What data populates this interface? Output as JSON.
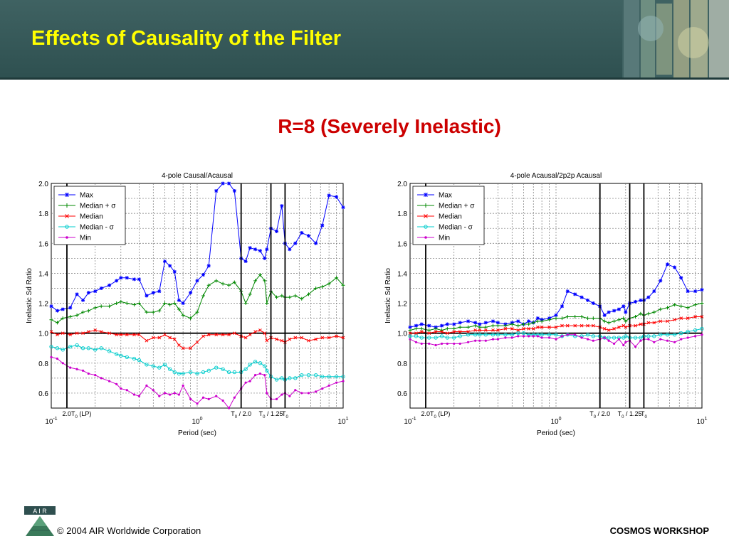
{
  "slide": {
    "title": "Effects of Causality of the Filter",
    "subtitle": "R=8 (Severely Inelastic)",
    "footer_copyright": "© 2004 AIR Worldwide Corporation",
    "footer_workshop": "COSMOS WORKSHOP",
    "logo_text": "A I R",
    "colors": {
      "title_bar": "#355757",
      "title_text": "#ffff00",
      "subtitle_text": "#cc0000",
      "max": "#0000ff",
      "median_plus_sigma": "#008800",
      "median": "#ff0000",
      "median_minus_sigma": "#00cccc",
      "min": "#cc00cc"
    }
  },
  "chart_data": [
    {
      "type": "line",
      "title": "4-pole Causal/Acausal",
      "xlabel": "Period (sec)",
      "ylabel": "Inelastic Sd Ratio",
      "xscale": "log",
      "xlim": [
        0.1,
        10
      ],
      "ylim": [
        0.5,
        2.0
      ],
      "yticks": [
        0.6,
        0.8,
        1.0,
        1.2,
        1.4,
        1.6,
        1.8,
        2.0
      ],
      "grid": true,
      "legend": "top-left",
      "reference_line": 1.0,
      "x_tick_labels": [
        {
          "x": 0.1,
          "label": "10",
          "sup": "-1"
        },
        {
          "x": 1,
          "label": "10",
          "sup": "0"
        },
        {
          "x": 10,
          "label": "10",
          "sup": "1"
        }
      ],
      "markers": [
        {
          "x": 0.128,
          "label": "2.0T",
          "sub": "0",
          "suffix": "(LP)"
        },
        {
          "x": 2.0,
          "label": "T",
          "sub": "0",
          "suffix": "/ 2.0"
        },
        {
          "x": 3.2,
          "label": "T",
          "sub": "0",
          "suffix": "/ 1.25"
        },
        {
          "x": 4.0,
          "label": "T",
          "sub": "0",
          "suffix": ""
        }
      ],
      "x": [
        0.1,
        0.11,
        0.12,
        0.135,
        0.15,
        0.165,
        0.18,
        0.2,
        0.22,
        0.25,
        0.28,
        0.3,
        0.33,
        0.37,
        0.4,
        0.45,
        0.5,
        0.55,
        0.6,
        0.65,
        0.7,
        0.75,
        0.8,
        0.9,
        1.0,
        1.1,
        1.2,
        1.35,
        1.5,
        1.65,
        1.8,
        2.0,
        2.15,
        2.3,
        2.5,
        2.7,
        2.9,
        3.0,
        3.2,
        3.5,
        3.8,
        4.0,
        4.3,
        4.7,
        5.2,
        5.8,
        6.5,
        7.2,
        8.0,
        9.0,
        10.0
      ],
      "series": [
        {
          "name": "Max",
          "marker": "star",
          "values": [
            1.18,
            1.15,
            1.16,
            1.17,
            1.26,
            1.22,
            1.27,
            1.28,
            1.3,
            1.32,
            1.35,
            1.37,
            1.37,
            1.36,
            1.36,
            1.25,
            1.27,
            1.28,
            1.48,
            1.45,
            1.41,
            1.22,
            1.2,
            1.27,
            1.35,
            1.39,
            1.45,
            1.95,
            2.0,
            2.0,
            1.95,
            1.5,
            1.48,
            1.57,
            1.56,
            1.55,
            1.5,
            1.56,
            1.7,
            1.68,
            1.85,
            1.6,
            1.56,
            1.6,
            1.67,
            1.65,
            1.6,
            1.72,
            1.92,
            1.91,
            1.84
          ]
        },
        {
          "name": "Median + σ",
          "marker": "plus",
          "values": [
            1.09,
            1.07,
            1.1,
            1.11,
            1.12,
            1.14,
            1.15,
            1.17,
            1.18,
            1.18,
            1.2,
            1.21,
            1.2,
            1.19,
            1.2,
            1.14,
            1.14,
            1.15,
            1.2,
            1.19,
            1.2,
            1.16,
            1.12,
            1.1,
            1.14,
            1.25,
            1.32,
            1.35,
            1.33,
            1.32,
            1.34,
            1.28,
            1.2,
            1.26,
            1.35,
            1.39,
            1.35,
            1.2,
            1.28,
            1.24,
            1.25,
            1.24,
            1.24,
            1.25,
            1.23,
            1.26,
            1.3,
            1.31,
            1.33,
            1.37,
            1.32
          ]
        },
        {
          "name": "Median",
          "marker": "x",
          "values": [
            1.01,
            0.99,
            1.0,
            0.99,
            1.0,
            1.0,
            1.01,
            1.02,
            1.01,
            1.0,
            0.99,
            0.99,
            0.99,
            0.99,
            0.99,
            0.95,
            0.97,
            0.97,
            0.99,
            0.97,
            0.96,
            0.92,
            0.9,
            0.9,
            0.94,
            0.98,
            0.99,
            0.99,
            0.99,
            0.99,
            1.0,
            0.98,
            0.97,
            0.99,
            1.01,
            1.02,
            1.0,
            0.95,
            0.97,
            0.96,
            0.95,
            0.94,
            0.96,
            0.97,
            0.97,
            0.95,
            0.96,
            0.97,
            0.97,
            0.98,
            0.97
          ]
        },
        {
          "name": "Median - σ",
          "marker": "circle",
          "values": [
            0.91,
            0.9,
            0.89,
            0.91,
            0.92,
            0.9,
            0.9,
            0.89,
            0.9,
            0.88,
            0.86,
            0.85,
            0.84,
            0.83,
            0.82,
            0.79,
            0.78,
            0.77,
            0.79,
            0.76,
            0.74,
            0.73,
            0.73,
            0.74,
            0.73,
            0.74,
            0.75,
            0.77,
            0.76,
            0.74,
            0.74,
            0.74,
            0.76,
            0.79,
            0.81,
            0.8,
            0.78,
            0.75,
            0.71,
            0.69,
            0.7,
            0.69,
            0.7,
            0.7,
            0.72,
            0.72,
            0.72,
            0.71,
            0.71,
            0.71,
            0.71
          ]
        },
        {
          "name": "Min",
          "marker": "dot",
          "values": [
            0.84,
            0.83,
            0.8,
            0.77,
            0.76,
            0.75,
            0.73,
            0.72,
            0.7,
            0.68,
            0.66,
            0.63,
            0.62,
            0.59,
            0.58,
            0.65,
            0.62,
            0.58,
            0.6,
            0.59,
            0.6,
            0.59,
            0.65,
            0.56,
            0.53,
            0.57,
            0.56,
            0.58,
            0.55,
            0.5,
            0.57,
            0.63,
            0.67,
            0.68,
            0.72,
            0.73,
            0.72,
            0.6,
            0.56,
            0.56,
            0.59,
            0.6,
            0.58,
            0.62,
            0.6,
            0.6,
            0.61,
            0.63,
            0.65,
            0.67,
            0.68
          ]
        }
      ]
    },
    {
      "type": "line",
      "title": "4-pole Acausal/2p2p Acausal",
      "xlabel": "Period (sec)",
      "ylabel": "Inelastic Sd Ratio",
      "xscale": "log",
      "xlim": [
        0.1,
        10
      ],
      "ylim": [
        0.5,
        2.0
      ],
      "yticks": [
        0.6,
        0.8,
        1.0,
        1.2,
        1.4,
        1.6,
        1.8,
        2.0
      ],
      "grid": true,
      "legend": "top-left",
      "reference_line": 1.0,
      "x_tick_labels": [
        {
          "x": 0.1,
          "label": "10",
          "sup": "-1"
        },
        {
          "x": 1,
          "label": "10",
          "sup": "0"
        },
        {
          "x": 10,
          "label": "10",
          "sup": "1"
        }
      ],
      "markers": [
        {
          "x": 0.128,
          "label": "2.0T",
          "sub": "0",
          "suffix": "(LP)"
        },
        {
          "x": 2.0,
          "label": "T",
          "sub": "0",
          "suffix": "/ 2.0"
        },
        {
          "x": 3.2,
          "label": "T",
          "sub": "0",
          "suffix": "/ 1.25"
        },
        {
          "x": 4.0,
          "label": "T",
          "sub": "0",
          "suffix": ""
        }
      ],
      "x": [
        0.1,
        0.11,
        0.12,
        0.135,
        0.15,
        0.165,
        0.18,
        0.2,
        0.22,
        0.25,
        0.28,
        0.3,
        0.33,
        0.37,
        0.4,
        0.45,
        0.5,
        0.55,
        0.6,
        0.65,
        0.7,
        0.75,
        0.8,
        0.9,
        1.0,
        1.1,
        1.2,
        1.35,
        1.5,
        1.65,
        1.8,
        2.0,
        2.15,
        2.3,
        2.5,
        2.7,
        2.9,
        3.0,
        3.2,
        3.5,
        3.8,
        4.0,
        4.3,
        4.7,
        5.2,
        5.8,
        6.5,
        7.2,
        8.0,
        9.0,
        10.0
      ],
      "series": [
        {
          "name": "Max",
          "marker": "star",
          "values": [
            1.04,
            1.05,
            1.06,
            1.05,
            1.04,
            1.05,
            1.06,
            1.06,
            1.07,
            1.08,
            1.07,
            1.06,
            1.07,
            1.08,
            1.07,
            1.06,
            1.07,
            1.08,
            1.06,
            1.08,
            1.07,
            1.1,
            1.09,
            1.1,
            1.12,
            1.18,
            1.28,
            1.26,
            1.24,
            1.22,
            1.2,
            1.18,
            1.12,
            1.14,
            1.15,
            1.16,
            1.18,
            1.14,
            1.2,
            1.21,
            1.22,
            1.22,
            1.24,
            1.28,
            1.35,
            1.46,
            1.44,
            1.37,
            1.28,
            1.28,
            1.29
          ]
        },
        {
          "name": "Median + σ",
          "marker": "plus",
          "values": [
            1.02,
            1.03,
            1.03,
            1.02,
            1.03,
            1.02,
            1.03,
            1.03,
            1.04,
            1.04,
            1.05,
            1.04,
            1.04,
            1.05,
            1.05,
            1.05,
            1.06,
            1.05,
            1.06,
            1.06,
            1.07,
            1.08,
            1.08,
            1.09,
            1.1,
            1.1,
            1.11,
            1.11,
            1.11,
            1.1,
            1.1,
            1.1,
            1.08,
            1.07,
            1.08,
            1.09,
            1.1,
            1.08,
            1.1,
            1.11,
            1.13,
            1.12,
            1.13,
            1.14,
            1.16,
            1.17,
            1.19,
            1.18,
            1.17,
            1.19,
            1.2
          ]
        },
        {
          "name": "Median",
          "marker": "x",
          "values": [
            1.0,
            1.0,
            1.01,
            1.0,
            1.01,
            1.01,
            1.0,
            1.01,
            1.01,
            1.01,
            1.02,
            1.02,
            1.02,
            1.02,
            1.02,
            1.03,
            1.03,
            1.02,
            1.03,
            1.03,
            1.03,
            1.04,
            1.04,
            1.04,
            1.04,
            1.05,
            1.05,
            1.05,
            1.05,
            1.05,
            1.05,
            1.04,
            1.03,
            1.02,
            1.03,
            1.04,
            1.05,
            1.04,
            1.05,
            1.05,
            1.06,
            1.06,
            1.07,
            1.07,
            1.08,
            1.08,
            1.09,
            1.1,
            1.1,
            1.11,
            1.11
          ]
        },
        {
          "name": "Median - σ",
          "marker": "circle",
          "values": [
            0.98,
            0.98,
            0.97,
            0.97,
            0.97,
            0.98,
            0.97,
            0.97,
            0.98,
            0.99,
            0.99,
            0.99,
            0.99,
            0.99,
            0.99,
            0.99,
            0.99,
            1.0,
            1.0,
            0.99,
            0.99,
            0.99,
            0.99,
            0.99,
            0.99,
            0.98,
            0.99,
            0.98,
            0.98,
            0.99,
            0.98,
            0.98,
            0.97,
            0.97,
            0.97,
            0.97,
            0.97,
            0.98,
            0.97,
            0.97,
            0.97,
            0.98,
            0.98,
            0.98,
            0.99,
            0.99,
            0.99,
            1.0,
            1.01,
            1.02,
            1.03
          ]
        },
        {
          "name": "Min",
          "marker": "dot",
          "values": [
            0.96,
            0.94,
            0.93,
            0.93,
            0.92,
            0.93,
            0.93,
            0.93,
            0.93,
            0.94,
            0.95,
            0.95,
            0.95,
            0.96,
            0.96,
            0.97,
            0.97,
            0.98,
            0.98,
            0.98,
            0.98,
            0.98,
            0.97,
            0.97,
            0.96,
            0.98,
            0.99,
            0.99,
            0.97,
            0.96,
            0.95,
            0.96,
            0.97,
            0.95,
            0.93,
            0.96,
            0.92,
            0.94,
            0.95,
            0.91,
            0.95,
            0.96,
            0.96,
            0.94,
            0.96,
            0.95,
            0.94,
            0.96,
            0.97,
            0.98,
            0.99
          ]
        }
      ]
    }
  ]
}
